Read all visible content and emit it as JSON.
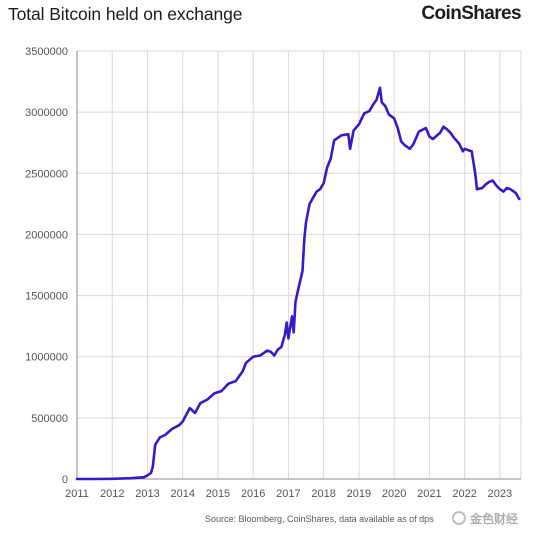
{
  "header": {
    "title": "Total Bitcoin held on exchange",
    "brand": "CoinShares"
  },
  "footer": {
    "source": "Source: Bloomberg, CoinShares, data available as of dps",
    "watermark_text": "金色财经"
  },
  "colors": {
    "line": "#3a19c8",
    "grid": "#d9d9d9",
    "axis": "#8c8c8c",
    "text": "#1d1d1d",
    "tick": "#555555"
  },
  "chart_data": {
    "type": "line",
    "title": "Total Bitcoin held on exchange",
    "xlabel": "",
    "ylabel": "",
    "xlim": [
      2011,
      2023.6
    ],
    "ylim": [
      0,
      3500000
    ],
    "grid": true,
    "legend": "none",
    "x_ticks": [
      "2011",
      "2012",
      "2013",
      "2014",
      "2015",
      "2016",
      "2017",
      "2018",
      "2019",
      "2020",
      "2021",
      "2022",
      "2023"
    ],
    "y_ticks": [
      "0",
      "500000",
      "1000000",
      "1500000",
      "2000000",
      "2500000",
      "3000000",
      "3500000"
    ],
    "series": [
      {
        "values": [
          [
            2011.0,
            0
          ],
          [
            2011.5,
            0
          ],
          [
            2012.0,
            2000
          ],
          [
            2012.5,
            6000
          ],
          [
            2012.9,
            15000
          ],
          [
            2013.0,
            30000
          ],
          [
            2013.1,
            50000
          ],
          [
            2013.15,
            100000
          ],
          [
            2013.22,
            280000
          ],
          [
            2013.35,
            340000
          ],
          [
            2013.5,
            360000
          ],
          [
            2013.7,
            410000
          ],
          [
            2013.9,
            440000
          ],
          [
            2014.0,
            470000
          ],
          [
            2014.2,
            580000
          ],
          [
            2014.35,
            540000
          ],
          [
            2014.5,
            620000
          ],
          [
            2014.7,
            650000
          ],
          [
            2014.9,
            700000
          ],
          [
            2015.1,
            720000
          ],
          [
            2015.3,
            780000
          ],
          [
            2015.5,
            800000
          ],
          [
            2015.7,
            880000
          ],
          [
            2015.8,
            950000
          ],
          [
            2016.0,
            1000000
          ],
          [
            2016.2,
            1010000
          ],
          [
            2016.4,
            1050000
          ],
          [
            2016.5,
            1040000
          ],
          [
            2016.6,
            1010000
          ],
          [
            2016.7,
            1060000
          ],
          [
            2016.8,
            1080000
          ],
          [
            2016.9,
            1180000
          ],
          [
            2016.95,
            1280000
          ],
          [
            2017.0,
            1150000
          ],
          [
            2017.1,
            1330000
          ],
          [
            2017.15,
            1200000
          ],
          [
            2017.2,
            1450000
          ],
          [
            2017.3,
            1580000
          ],
          [
            2017.4,
            1700000
          ],
          [
            2017.45,
            1960000
          ],
          [
            2017.5,
            2100000
          ],
          [
            2017.6,
            2250000
          ],
          [
            2017.7,
            2300000
          ],
          [
            2017.8,
            2350000
          ],
          [
            2017.9,
            2370000
          ],
          [
            2018.0,
            2420000
          ],
          [
            2018.1,
            2550000
          ],
          [
            2018.2,
            2620000
          ],
          [
            2018.3,
            2770000
          ],
          [
            2018.5,
            2810000
          ],
          [
            2018.7,
            2820000
          ],
          [
            2018.75,
            2700000
          ],
          [
            2018.85,
            2850000
          ],
          [
            2019.0,
            2900000
          ],
          [
            2019.15,
            2990000
          ],
          [
            2019.3,
            3010000
          ],
          [
            2019.4,
            3060000
          ],
          [
            2019.5,
            3100000
          ],
          [
            2019.6,
            3200000
          ],
          [
            2019.65,
            3080000
          ],
          [
            2019.75,
            3050000
          ],
          [
            2019.85,
            2980000
          ],
          [
            2020.0,
            2950000
          ],
          [
            2020.1,
            2870000
          ],
          [
            2020.2,
            2760000
          ],
          [
            2020.3,
            2730000
          ],
          [
            2020.45,
            2700000
          ],
          [
            2020.55,
            2740000
          ],
          [
            2020.7,
            2840000
          ],
          [
            2020.9,
            2870000
          ],
          [
            2021.0,
            2800000
          ],
          [
            2021.1,
            2780000
          ],
          [
            2021.3,
            2830000
          ],
          [
            2021.4,
            2880000
          ],
          [
            2021.5,
            2860000
          ],
          [
            2021.6,
            2830000
          ],
          [
            2021.7,
            2790000
          ],
          [
            2021.85,
            2740000
          ],
          [
            2021.95,
            2680000
          ],
          [
            2022.0,
            2700000
          ],
          [
            2022.1,
            2690000
          ],
          [
            2022.2,
            2680000
          ],
          [
            2022.3,
            2500000
          ],
          [
            2022.35,
            2370000
          ],
          [
            2022.5,
            2380000
          ],
          [
            2022.6,
            2410000
          ],
          [
            2022.7,
            2430000
          ],
          [
            2022.8,
            2440000
          ],
          [
            2022.9,
            2400000
          ],
          [
            2023.0,
            2370000
          ],
          [
            2023.1,
            2350000
          ],
          [
            2023.2,
            2380000
          ],
          [
            2023.3,
            2370000
          ],
          [
            2023.45,
            2340000
          ],
          [
            2023.55,
            2290000
          ]
        ]
      }
    ]
  }
}
